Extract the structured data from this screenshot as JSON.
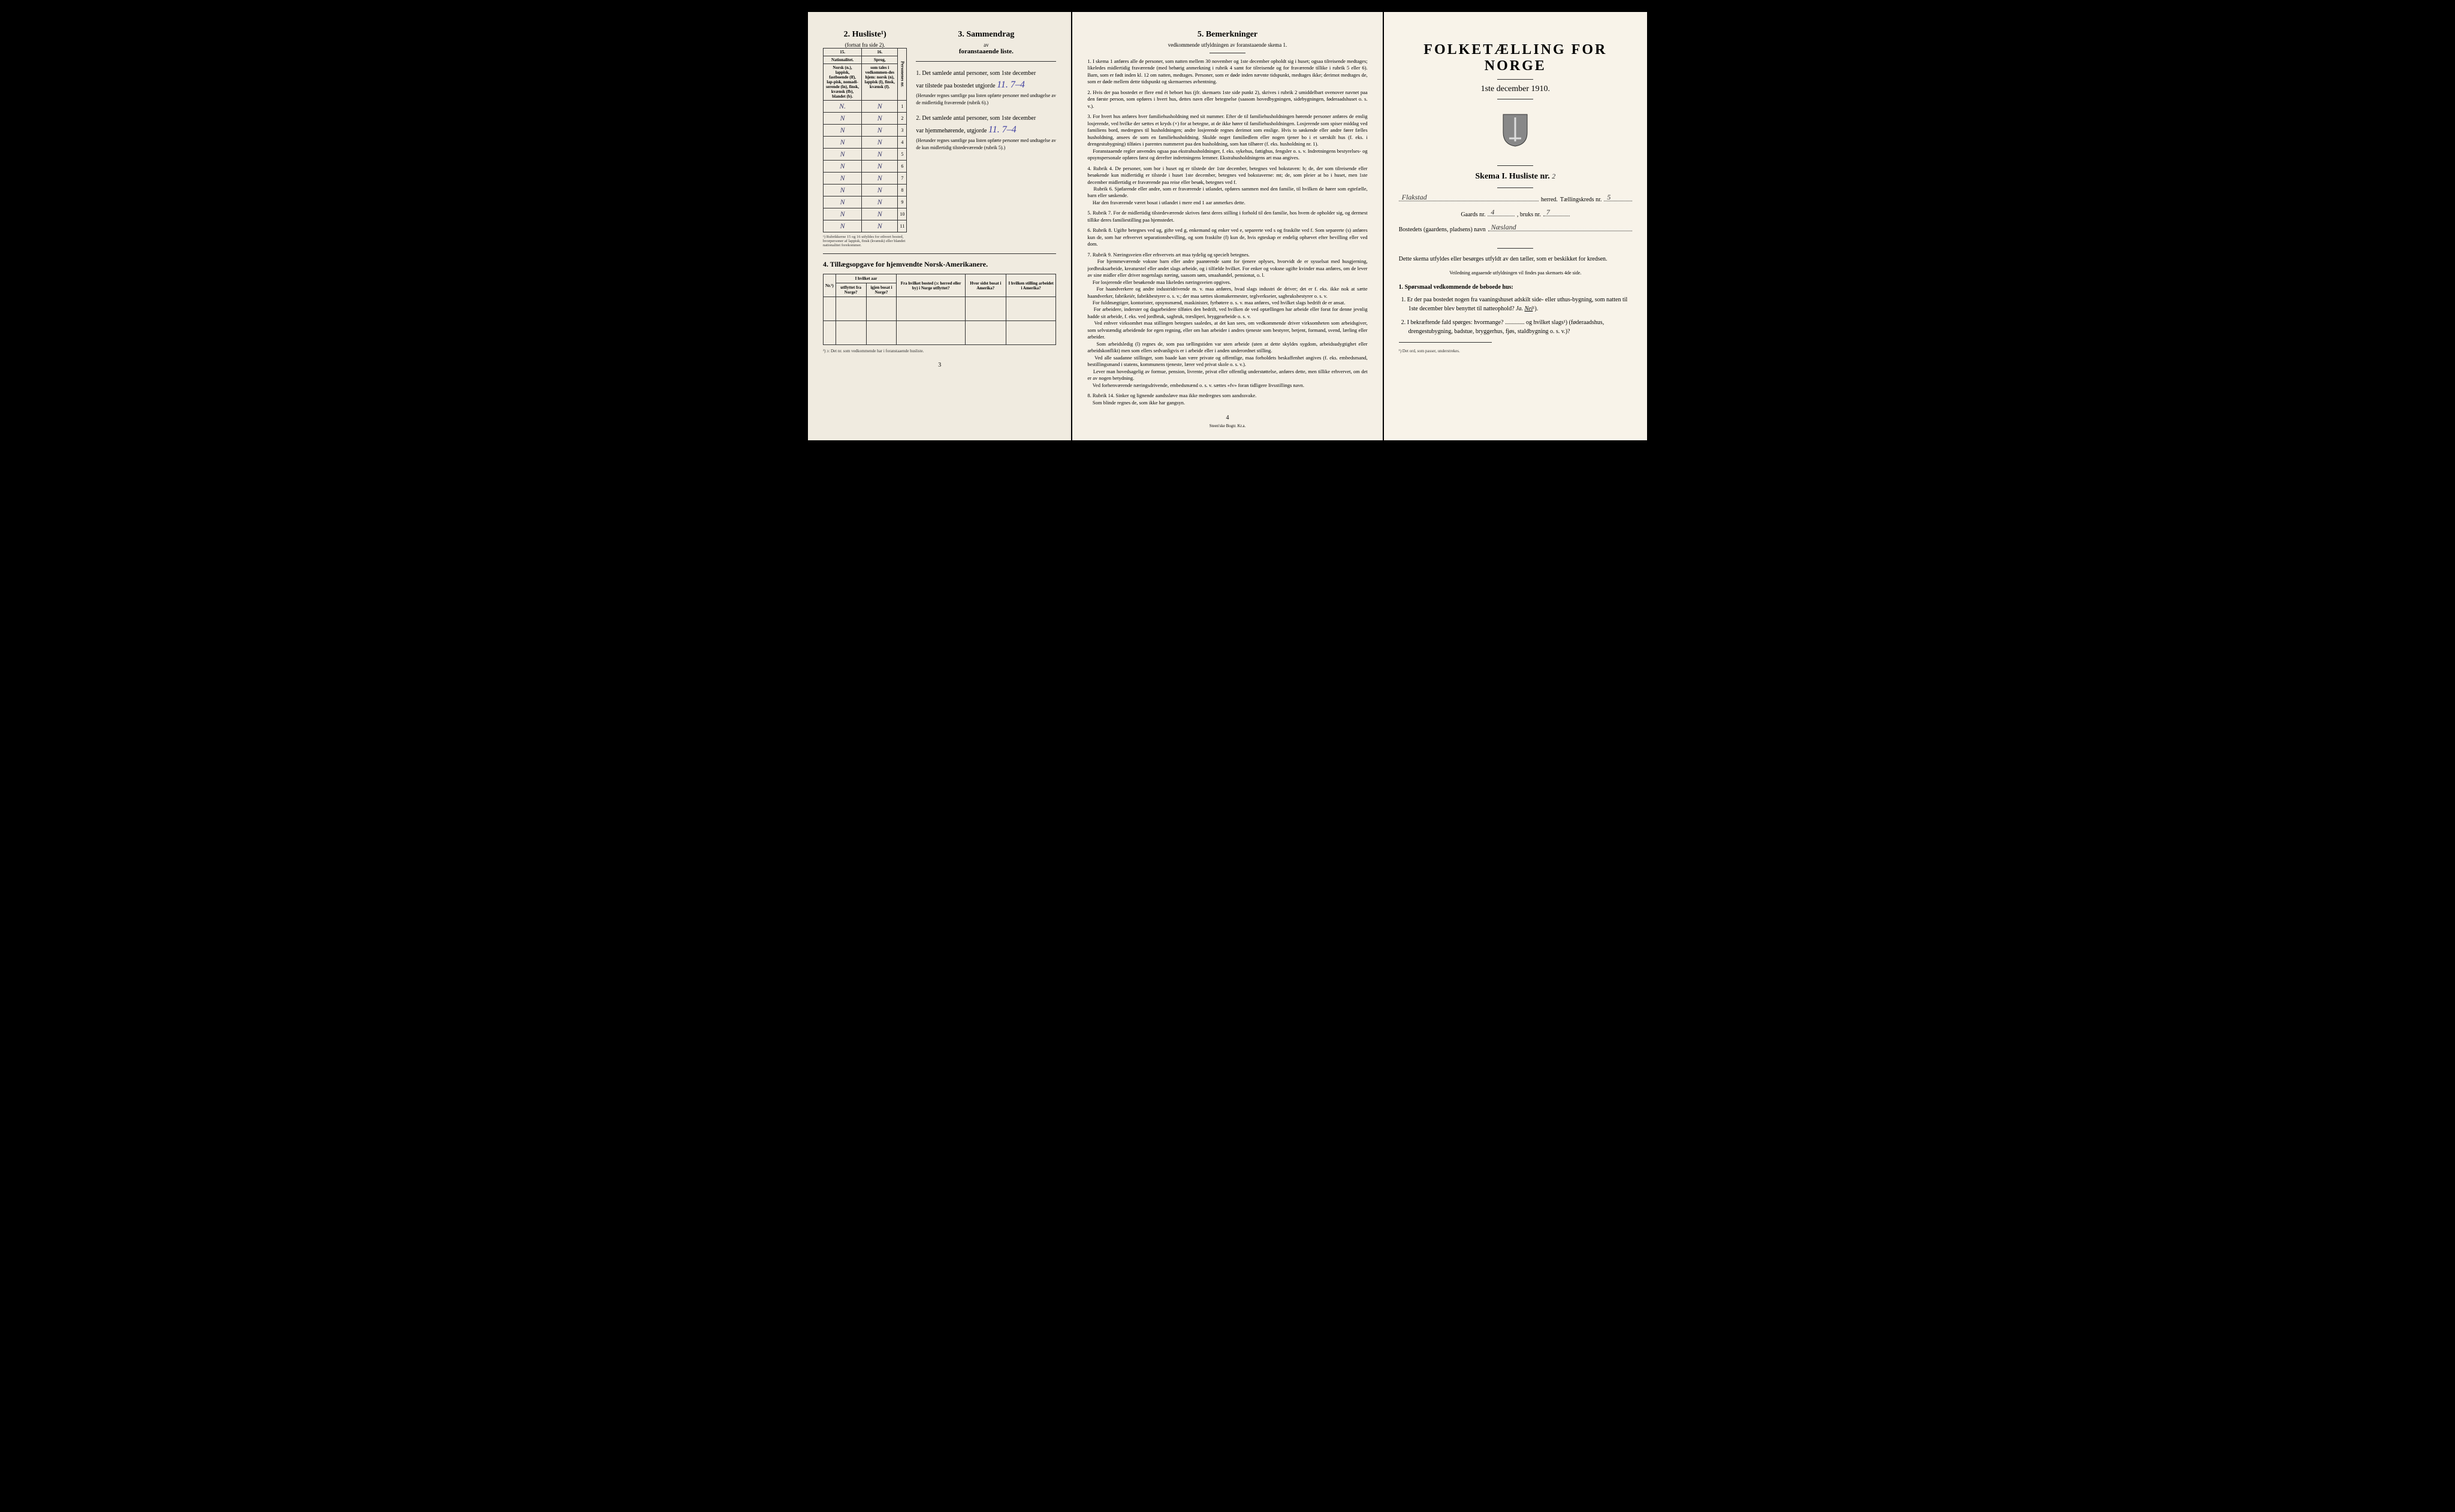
{
  "left": {
    "section2": {
      "heading": "2.  Husliste¹)",
      "subheading": "(fortsat fra side 2).",
      "col15": "15.",
      "col16": "16.",
      "nat_heading": "Nationalitet.",
      "sprog_heading": "Sprog,",
      "nat_text": "Norsk (n.), lappisk, fastboende (lf), lap-pisk, nomadi-serende (ln), finsk, kvænsk (fb), blandet (b).",
      "sprog_text": "som tales i vedkommen-des hjem: norsk (n), lappisk (l), finsk, kvænsk (f).",
      "pers_col": "Personenes nr.",
      "rows": [
        {
          "n15": "N.",
          "n16": "N",
          "num": "1"
        },
        {
          "n15": "N",
          "n16": "N",
          "num": "2"
        },
        {
          "n15": "N",
          "n16": "N",
          "num": "3"
        },
        {
          "n15": "N",
          "n16": "N",
          "num": "4"
        },
        {
          "n15": "N",
          "n16": "N",
          "num": "5"
        },
        {
          "n15": "N",
          "n16": "N",
          "num": "6"
        },
        {
          "n15": "N",
          "n16": "N",
          "num": "7"
        },
        {
          "n15": "N",
          "n16": "N",
          "num": "8"
        },
        {
          "n15": "N",
          "n16": "N",
          "num": "9"
        },
        {
          "n15": "N",
          "n16": "N",
          "num": "10"
        },
        {
          "n15": "N",
          "n16": "N",
          "num": "11"
        }
      ],
      "footnote": "¹) Rubrikkerne 15 og 16 utfyldes for ethvert bosted, hvorpersoner af lappisk, finsk (kvænsk) eller blandet nationalitet forekommer."
    },
    "section3": {
      "heading": "3.  Sammendrag",
      "subheading1": "av",
      "subheading2": "foranstaaende liste.",
      "item1_pre": "1.  Det samlede antal personer, som 1ste december",
      "item1_line": "var tilstede paa bostedet utgjorde",
      "item1_value": "11.  7–4",
      "item1_note": "(Herunder regnes samtlige paa listen opførte personer med undtagelse av de midlertidig fraværende (rubrik 6).)",
      "item2_pre": "2.  Det samlede antal personer, som 1ste december",
      "item2_line": "var hjemmehørende, utgjorde",
      "item2_value": "11.  7–4",
      "item2_note": "(Herunder regnes samtlige paa listen opførte personer med undtagelse av de kun midlertidig tilstedeværende (rubrik 5).)"
    },
    "section4": {
      "heading": "4.  Tillægsopgave for hjemvendte Norsk-Amerikanere.",
      "cols": {
        "nr": "Nr.²)",
        "aar": "I hvilket aar",
        "utflyttet": "utflyttet fra Norge?",
        "igjen": "igjen bosat i Norge?",
        "fra_bosted": "Fra hvilket bosted (ɔ: herred eller by) i Norge utflyttet?",
        "hvor_sidst": "Hvor sidst bosat i Amerika?",
        "stilling": "I hvilken stilling arbeidet i Amerika?"
      },
      "footnote": "²) ɔ: Det nr. som vedkommende har i foranstaaende husliste."
    },
    "page_num": "3"
  },
  "middle": {
    "heading": "5.  Bemerkninger",
    "subheading": "vedkommende utfyldningen av foranstaaende skema 1.",
    "items": [
      "I skema 1 anføres alle de personer, som natten mellem 30 november og 1ste december opholdt sig i huset; ogsaa tilreisende medtages; likeledes midlertidig fraværende (med behørig anmerkning i rubrik 4 samt for tilreisende og for fraværende tillike i rubrik 5 eller 6). Barn, som er født inden kl. 12 om natten, medtages. Personer, som er døde inden nævnte tidspunkt, medtages ikke; derimot medtages de, som er døde mellem dette tidspunkt og skemaernes avhentning.",
      "Hvis der paa bostedet er flere end ét beboet hus (jfr. skemaets 1ste side punkt 2), skrives i rubrik 2 umiddelbart ovenover navnet paa den første person, som opføres i hvert hus, dettes navn eller betegnelse (saasom hovedbygningen, sidebygningen, føderaadshuset o. s. v.).",
      "For hvert hus anføres hver familiehusholdning med sit nummer. Efter de til familiehusholdningen hørende personer anføres de enslig losjerende, ved hvilke der sættes et kryds (×) for at betegne, at de ikke hører til familiehusholdningen. Losjerende som spiser middag ved familiens bord, medregnes til husholdningen; andre losjerende regnes derimot som enslige. Hvis to søskende eller andre fører fælles husholdning, ansees de som en familiehusholdning. Skulde noget familiedlem eller nogen tjener bo i et særskilt hus (f. eks. i drengestubygning) tilføies i parentes nummeret paa den husholdning, som han tilhører (f. eks. husholdning nr. 1). \n Foranstaaende regler anvendes ogsaa paa ekstrahusholdninger, f. eks. sykehus, fattighus, fengsler o. s. v. Indretningens bestyrelses- og opsynspersonale opføres først og derefter indretningens lemmer. Ekstrahusholdningens art maa angives.",
      "Rubrik 4. De personer, som bor i huset og er tilstede der 1ste december, betegnes ved bokstaven: b; de, der som tilreisende eller besøkende kun midlertidig er tilstede i huset 1ste december, betegnes ved bokstaverne: mt; de, som pleier at bo i huset, men 1ste december midlertidig er fraværende paa reise eller besøk, betegnes ved f. \n Rubrik 6. Sjøfarende eller andre, som er fraværende i utlandet, opføres sammen med den familie, til hvilken de hører som egtefælle, barn eller søskende. \n Har den fraværende været bosat i utlandet i mere end 1 aar anmerkes dette.",
      "Rubrik 7. For de midlertidig tilstedeværende skrives først deres stilling i forhold til den familie, hos hvem de opholder sig, og dermest tillike deres familiestilling paa hjemstedet.",
      "Rubrik 8. Ugifte betegnes ved ug, gifte ved g, enkemand og enker ved e, separerte ved s og fraskilte ved f. Som separerte (s) anføres kun de, som har erhvervet separationsbevilling, og som fraskilte (f) kun de, hvis egteskap er endelig ophævet efter bevilling eller ved dom.",
      "Rubrik 9. Næringsveien eller erhvervets art maa tydelig og specielt betegnes. \n For hjemmeværende voksne barn eller andre paarørende samt for tjenere oplyses, hvorvidt de er sysselsat med husgjerning, jordbruksarbeide, kreaturstel eller andet slags arbeide, og i tilfælde hvilket. For enker og voksne ugifte kvinder maa anføres, om de lever av sine midler eller driver nogetslags næring, saasom søm, smaahandel, pensionat, o. l. \n For losjerende eller besøkende maa likeledes næringsveien opgives. \n For haandverkere og andre industridrivende m. v. maa anføres, hvad slags industri de driver; det er f. eks. ikke nok at sætte haandverker, fabrikeiér, fabrikbestyrer o. s. v.; der maa sættes skomakermester, teglverkseier, sagbruksbestyrer o. s. v. \n For fuldmægtiger, kontorister, opsynsmænd, maskinister, fyrbøtere o. s. v. maa anføres, ved hvilket slags bedrift de er ansat. \n For arbeidere, inderster og dagarbeidere tilføies den bedrift, ved hvilken de ved optællingen har arbeide eller forut for denne jevnlig hadde sit arbeide, f. eks. ved jordbruk, sagbruk, træsliperi, bryggearbeide o. s. v. \n Ved enhver virksomhet maa stillingen betegnes saaledes, at det kan sees, om vedkommende driver virksomheten som arbeidsgiver, som selvstændig arbeidende for egen regning, eller om han arbeider i andres tjeneste som bestyrer, betjent, formand, svend, lærling eller arbeider. \n Som arbeidsledig (l) regnes de, som paa tællingstiden var uten arbeide (uten at dette skyldes sygdom, arbeidsudygtighet eller arbeidskonflikt) men som ellers sedvanligvis er i arbeide eller i anden underordnet stilling. \n Ved alle saadanne stillinger, som baade kan være private og offentlige, maa forholdets beskaffenhet angives (f. eks. embedsmand, bestillingsmand i statens, kommunens tjeneste, lærer ved privat skole o. s. v.). \n Lever man hovedsagelig av formue, pension, livrente, privat eller offentlig understøttelse, anføres dette, men tillike erhvervet, om det er av nogen betydning. \n Ved forhenværende næringsdrivende, embedsmænd o. s. v. sættes «fv» foran tidligere livsstillings navn.",
      "Rubrik 14. Sinker og lignende aandssløve maa ikke medregnes som aandssvake. \n Som blinde regnes de, som ikke har gangsyn."
    ],
    "page_num": "4",
    "printer": "Steen'ske Bogtr. Kr.a."
  },
  "right": {
    "title": "FOLKETÆLLING FOR NORGE",
    "date": "1ste december 1910.",
    "skema_label": "Skema I.  Husliste nr.",
    "skema_value": "2",
    "herred_value": "Flakstad",
    "herred_label": "herred.",
    "kreds_label": "Tællingskreds nr.",
    "kreds_value": "5",
    "gaards_label": "Gaards nr.",
    "gaards_value": "4",
    "bruks_label": ", bruks nr.",
    "bruks_value": "7",
    "bosted_label": "Bostedets (gaardens, pladsens) navn",
    "bosted_value": "Næsland",
    "intro": "Dette skema utfyldes eller besørges utfyldt av den tæller, som er beskikket for kredsen.",
    "veiledning": "Veiledning angaaende utfyldningen vil findes paa skemaets 4de side.",
    "q_heading": "1.  Spørsmaal vedkommende de beboede hus:",
    "q1": "1. Er der paa bostedet nogen fra vaaningshuset adskilt side- eller uthus-bygning, som natten til 1ste december blev benyttet til natteophold?",
    "q1_ja": "Ja.",
    "q1_nei": "Nei",
    "q1_sup": "¹).",
    "q2": "2. I bekræftende fald spørges: hvormange? ............. og hvilket slags¹) (føderaadshus, drengestubygning, badstue, bryggerhus, fjøs, staldbygning o. s. v.)?",
    "footnote": "¹) Det ord, som passer, understrekes."
  }
}
